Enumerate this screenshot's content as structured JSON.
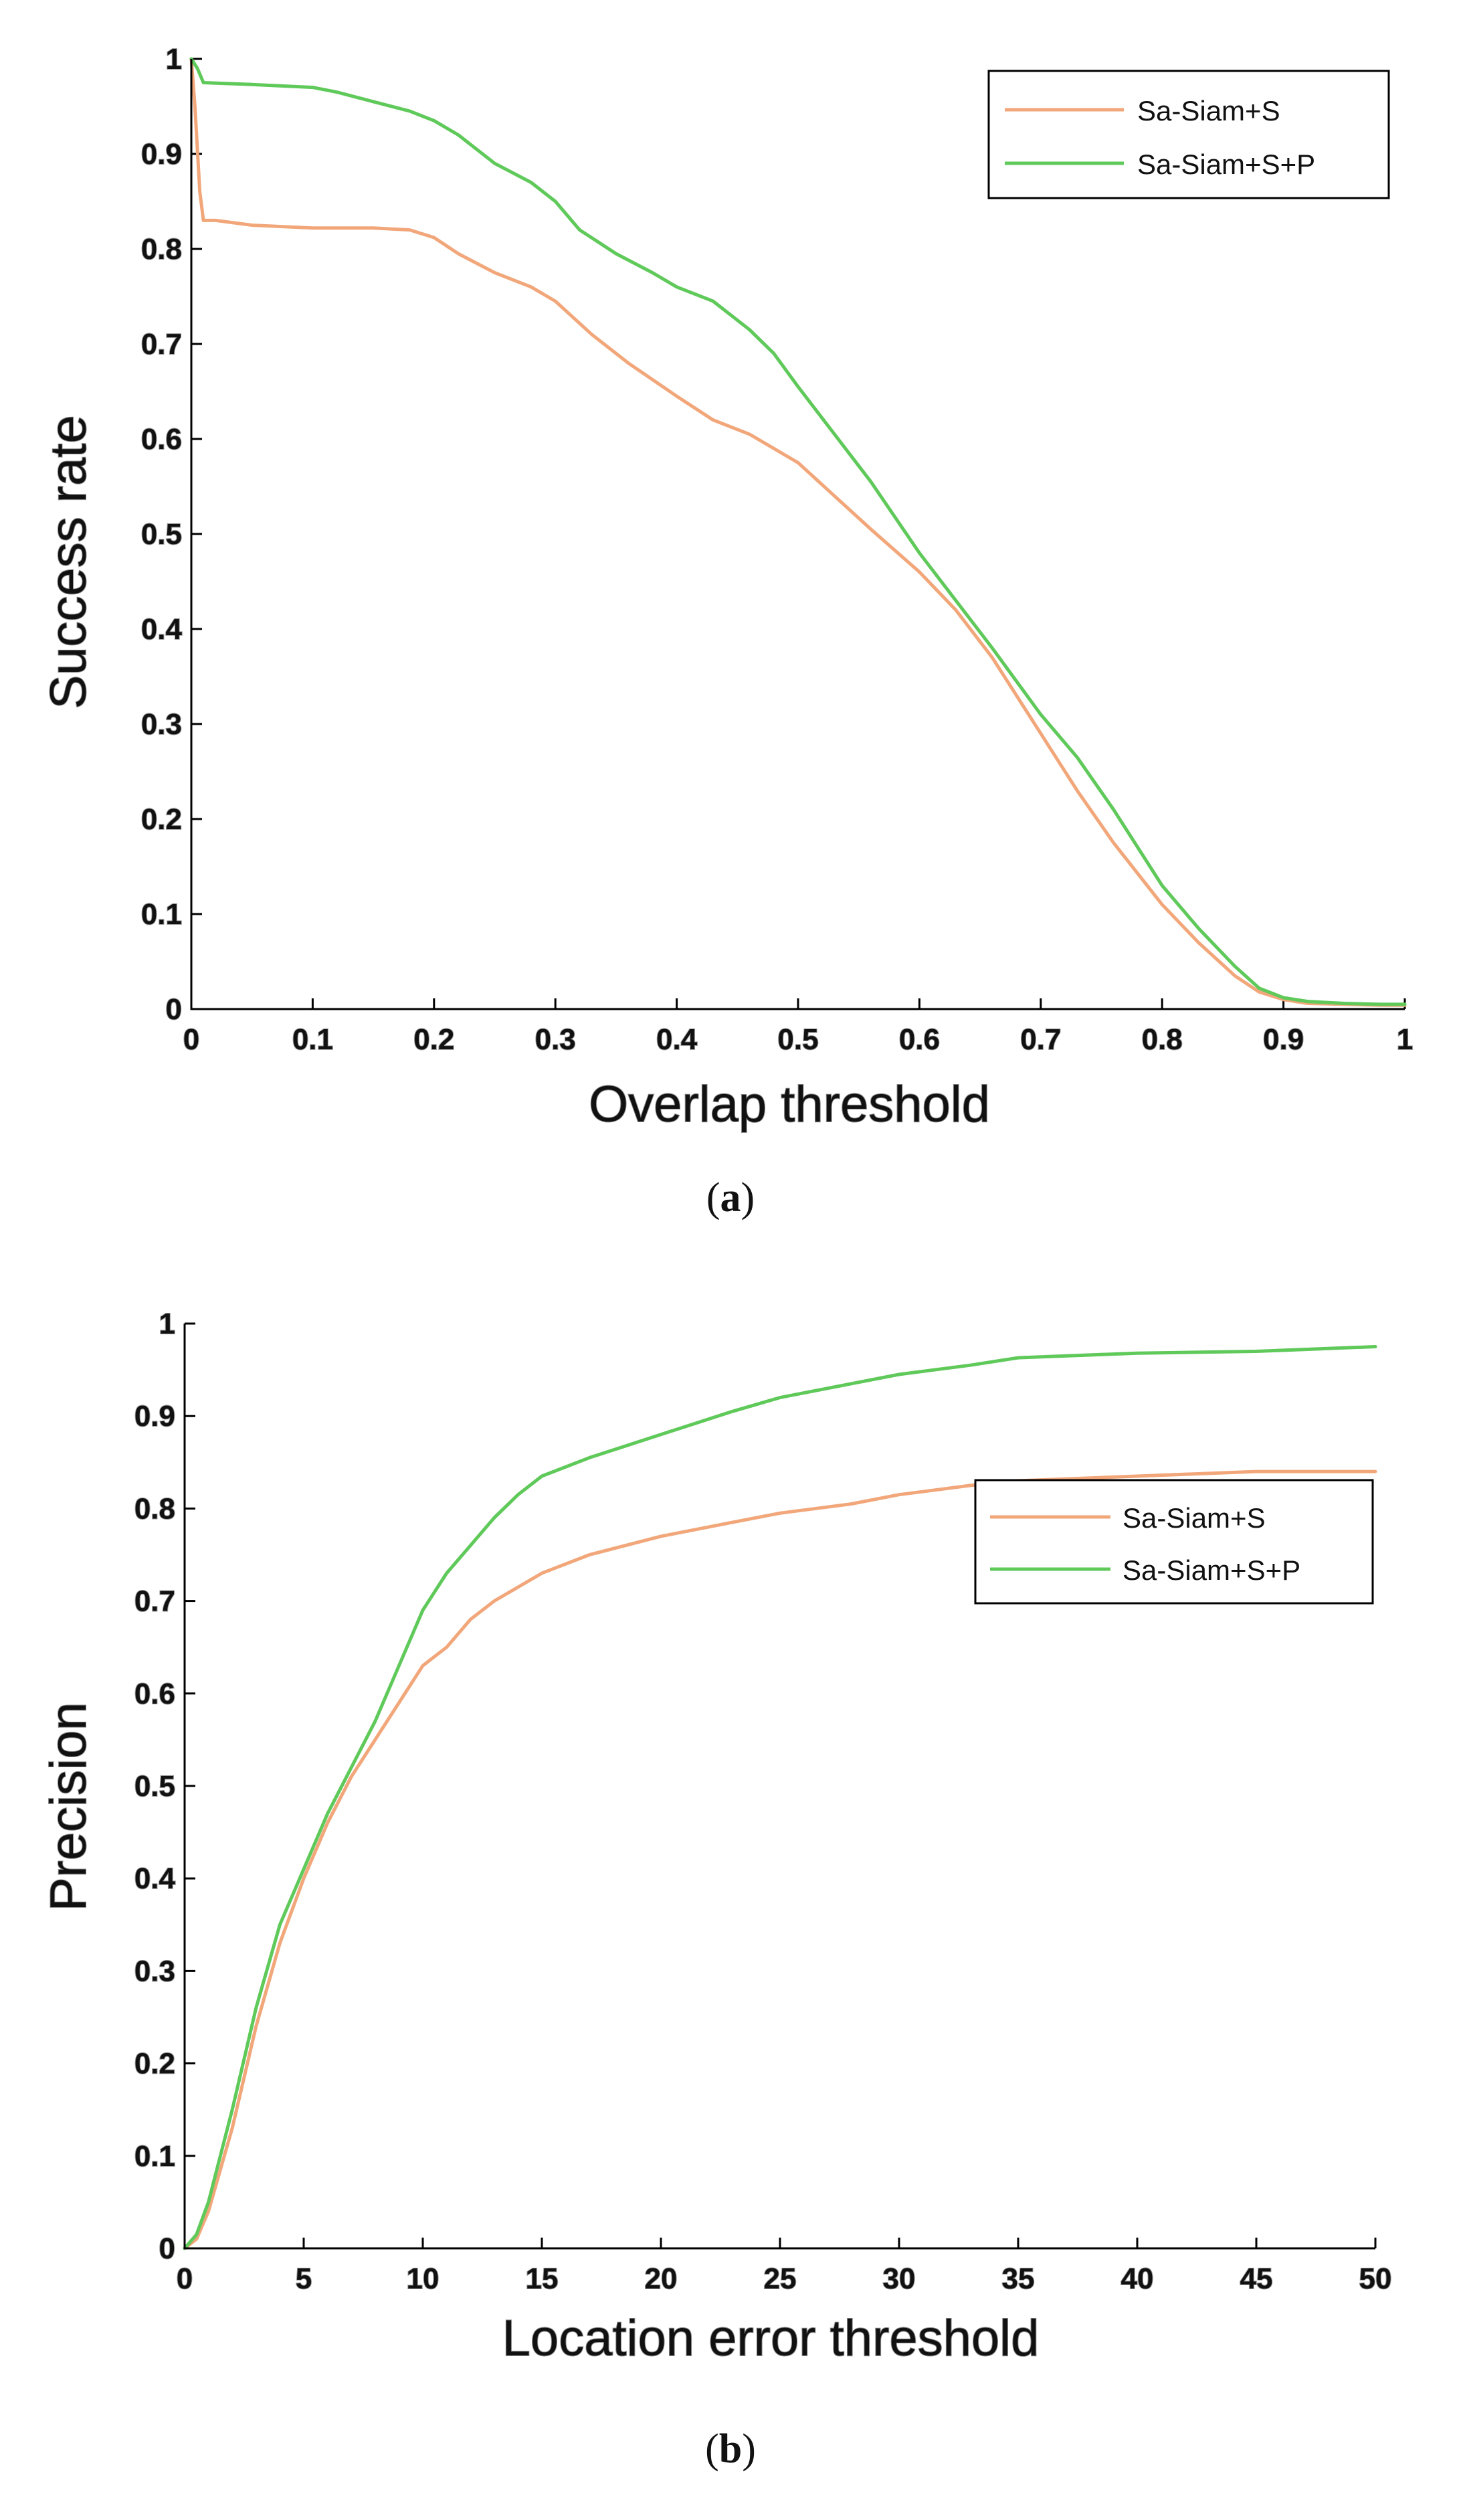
{
  "colors": {
    "sa_siam_s": "#F2A77B",
    "sa_siam_s_p": "#5FC95A"
  },
  "chart_data": [
    {
      "id": "a",
      "type": "line",
      "caption_letter": "a",
      "caption_open": "(",
      "caption_close": ")",
      "xlabel": "Overlap threshold",
      "ylabel": "Success rate",
      "xlim": [
        0,
        1
      ],
      "ylim": [
        0,
        1
      ],
      "xticks": [
        0,
        0.1,
        0.2,
        0.3,
        0.4,
        0.5,
        0.6,
        0.7,
        0.8,
        0.9,
        1
      ],
      "xtick_labels": [
        "0",
        "0.1",
        "0.2",
        "0.3",
        "0.4",
        "0.5",
        "0.6",
        "0.7",
        "0.8",
        "0.9",
        "1"
      ],
      "yticks": [
        0,
        0.1,
        0.2,
        0.3,
        0.4,
        0.5,
        0.6,
        0.7,
        0.8,
        0.9,
        1
      ],
      "ytick_labels": [
        "0",
        "0.1",
        "0.2",
        "0.3",
        "0.4",
        "0.5",
        "0.6",
        "0.7",
        "0.8",
        "0.9",
        "1"
      ],
      "legend_position": "top-right",
      "series": [
        {
          "name": "Sa-Siam+S",
          "color": "#F2A77B",
          "x": [
            0,
            0.003,
            0.007,
            0.01,
            0.02,
            0.05,
            0.1,
            0.15,
            0.18,
            0.2,
            0.22,
            0.25,
            0.28,
            0.3,
            0.33,
            0.36,
            0.4,
            0.43,
            0.46,
            0.5,
            0.53,
            0.56,
            0.6,
            0.63,
            0.66,
            0.7,
            0.73,
            0.76,
            0.8,
            0.83,
            0.86,
            0.88,
            0.9,
            0.92,
            0.95,
            0.98,
            1.0
          ],
          "y": [
            1.0,
            0.95,
            0.86,
            0.83,
            0.83,
            0.825,
            0.822,
            0.822,
            0.82,
            0.812,
            0.795,
            0.775,
            0.76,
            0.745,
            0.71,
            0.68,
            0.645,
            0.62,
            0.605,
            0.575,
            0.54,
            0.505,
            0.46,
            0.42,
            0.37,
            0.29,
            0.23,
            0.175,
            0.11,
            0.07,
            0.035,
            0.018,
            0.01,
            0.006,
            0.005,
            0.004,
            0.004
          ]
        },
        {
          "name": "Sa-Siam+S+P",
          "color": "#5FC95A",
          "x": [
            0,
            0.005,
            0.01,
            0.05,
            0.1,
            0.12,
            0.15,
            0.18,
            0.2,
            0.22,
            0.25,
            0.28,
            0.3,
            0.32,
            0.35,
            0.38,
            0.4,
            0.43,
            0.46,
            0.48,
            0.5,
            0.53,
            0.56,
            0.6,
            0.63,
            0.66,
            0.7,
            0.73,
            0.76,
            0.8,
            0.83,
            0.86,
            0.88,
            0.9,
            0.92,
            0.95,
            0.98,
            1.0
          ],
          "y": [
            1.0,
            0.99,
            0.975,
            0.973,
            0.97,
            0.965,
            0.955,
            0.945,
            0.935,
            0.92,
            0.89,
            0.87,
            0.85,
            0.82,
            0.795,
            0.775,
            0.76,
            0.745,
            0.715,
            0.69,
            0.655,
            0.605,
            0.555,
            0.48,
            0.43,
            0.38,
            0.31,
            0.265,
            0.21,
            0.13,
            0.085,
            0.045,
            0.022,
            0.012,
            0.008,
            0.006,
            0.005,
            0.005
          ]
        }
      ]
    },
    {
      "id": "b",
      "type": "line",
      "caption_letter": "b",
      "caption_open": "(",
      "caption_close": ")",
      "xlabel": "Location error threshold",
      "ylabel": "Precision",
      "xlim": [
        0,
        50
      ],
      "ylim": [
        0,
        1
      ],
      "xticks": [
        0,
        5,
        10,
        15,
        20,
        25,
        30,
        35,
        40,
        45,
        50
      ],
      "xtick_labels": [
        "0",
        "5",
        "10",
        "15",
        "20",
        "25",
        "30",
        "35",
        "40",
        "45",
        "50"
      ],
      "yticks": [
        0,
        0.1,
        0.2,
        0.3,
        0.4,
        0.5,
        0.6,
        0.7,
        0.8,
        0.9,
        1
      ],
      "ytick_labels": [
        "0",
        "0.1",
        "0.2",
        "0.3",
        "0.4",
        "0.5",
        "0.6",
        "0.7",
        "0.8",
        "0.9",
        "1"
      ],
      "legend_position": "right",
      "series": [
        {
          "name": "Sa-Siam+S",
          "color": "#F2A77B",
          "x": [
            0,
            0.5,
            1,
            2,
            3,
            4,
            5,
            6,
            7,
            8,
            9,
            10,
            11,
            12,
            13,
            14,
            15,
            17,
            20,
            23,
            25,
            28,
            30,
            33,
            35,
            40,
            45,
            50
          ],
          "y": [
            0,
            0.01,
            0.04,
            0.13,
            0.24,
            0.33,
            0.4,
            0.46,
            0.51,
            0.55,
            0.59,
            0.63,
            0.65,
            0.68,
            0.7,
            0.715,
            0.73,
            0.75,
            0.77,
            0.785,
            0.795,
            0.805,
            0.815,
            0.825,
            0.83,
            0.835,
            0.84,
            0.84
          ]
        },
        {
          "name": "Sa-Siam+S+P",
          "color": "#5FC95A",
          "x": [
            0,
            0.5,
            1,
            2,
            3,
            4,
            5,
            6,
            7,
            8,
            9,
            10,
            11,
            12,
            13,
            14,
            15,
            17,
            20,
            23,
            25,
            28,
            30,
            33,
            35,
            40,
            45,
            50
          ],
          "y": [
            0,
            0.015,
            0.05,
            0.15,
            0.26,
            0.35,
            0.41,
            0.47,
            0.52,
            0.57,
            0.63,
            0.69,
            0.73,
            0.76,
            0.79,
            0.815,
            0.835,
            0.855,
            0.88,
            0.905,
            0.92,
            0.935,
            0.945,
            0.955,
            0.963,
            0.968,
            0.97,
            0.975
          ]
        }
      ]
    }
  ]
}
